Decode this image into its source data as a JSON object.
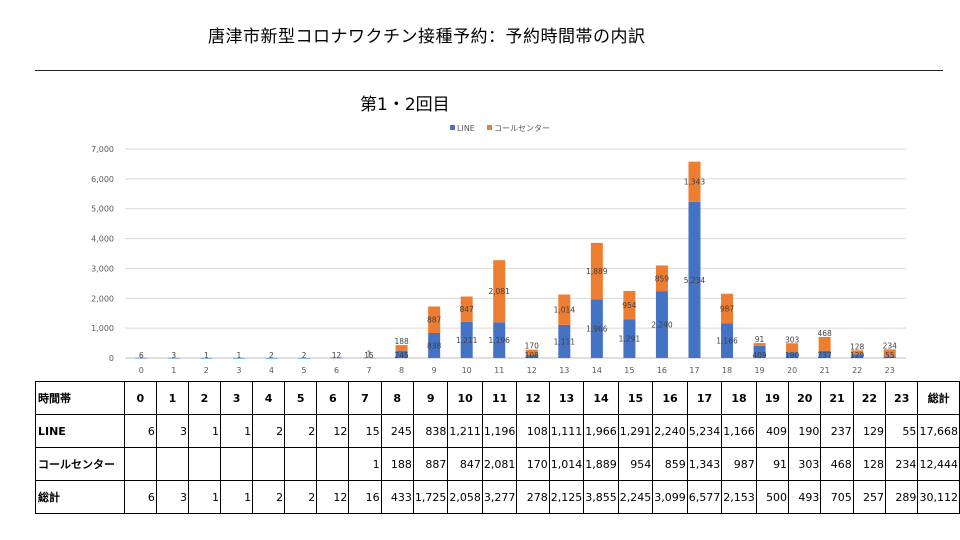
{
  "page": {
    "title": "唐津市新型コロナワクチン接種予約：予約時間帯の内訳"
  },
  "colors": {
    "line": "#4472C4",
    "call": "#ED7D31",
    "grid": "#D9D9D9",
    "axis_text": "#595959"
  },
  "chart_data": {
    "type": "bar",
    "stacked": true,
    "title": "第1・2回目",
    "categories": [
      "0",
      "1",
      "2",
      "3",
      "4",
      "5",
      "6",
      "7",
      "8",
      "9",
      "10",
      "11",
      "12",
      "13",
      "14",
      "15",
      "16",
      "17",
      "18",
      "19",
      "20",
      "21",
      "22",
      "23"
    ],
    "series": [
      {
        "name": "LINE",
        "values": [
          6,
          3,
          1,
          1,
          2,
          2,
          12,
          15,
          245,
          838,
          1211,
          1196,
          108,
          1111,
          1966,
          1291,
          2240,
          5234,
          1166,
          409,
          190,
          237,
          129,
          55
        ],
        "labels": [
          "6",
          "3",
          "1",
          "1",
          "2",
          "2",
          "12",
          "15",
          "245",
          "838",
          "1,211",
          "1,196",
          "108",
          "1,111",
          "1,966",
          "1,291",
          "2,240",
          "5,234",
          "1,166",
          "409",
          "190",
          "237",
          "129",
          "55"
        ]
      },
      {
        "name": "コールセンター",
        "values": [
          null,
          null,
          null,
          null,
          null,
          null,
          null,
          1,
          188,
          887,
          847,
          2081,
          170,
          1014,
          1889,
          954,
          859,
          1343,
          987,
          91,
          303,
          468,
          128,
          234
        ],
        "labels": [
          "",
          "",
          "",
          "",
          "",
          "",
          "",
          "1",
          "188",
          "887",
          "847",
          "2,081",
          "170",
          "1,014",
          "1,889",
          "954",
          "859",
          "1,343",
          "987",
          "91",
          "303",
          "468",
          "128",
          "234"
        ]
      }
    ],
    "ylim": [
      0,
      7000
    ],
    "yticks": [
      "0",
      "1,000",
      "2,000",
      "3,000",
      "4,000",
      "5,000",
      "6,000",
      "7,000"
    ],
    "legend_position": "top-center",
    "grid": true
  },
  "table": {
    "header_label": "時間帯",
    "total_col_label": "総計",
    "hours": [
      "0",
      "1",
      "2",
      "3",
      "4",
      "5",
      "6",
      "7",
      "8",
      "9",
      "10",
      "11",
      "12",
      "13",
      "14",
      "15",
      "16",
      "17",
      "18",
      "19",
      "20",
      "21",
      "22",
      "23"
    ],
    "rows": [
      {
        "label": "LINE",
        "cells": [
          "6",
          "3",
          "1",
          "1",
          "2",
          "2",
          "12",
          "15",
          "245",
          "838",
          "1,211",
          "1,196",
          "108",
          "1,111",
          "1,966",
          "1,291",
          "2,240",
          "5,234",
          "1,166",
          "409",
          "190",
          "237",
          "129",
          "55"
        ],
        "total": "17,668"
      },
      {
        "label": "コールセンター",
        "cells": [
          "",
          "",
          "",
          "",
          "",
          "",
          "",
          "1",
          "188",
          "887",
          "847",
          "2,081",
          "170",
          "1,014",
          "1,889",
          "954",
          "859",
          "1,343",
          "987",
          "91",
          "303",
          "468",
          "128",
          "234"
        ],
        "total": "12,444"
      },
      {
        "label": "総計",
        "cells": [
          "6",
          "3",
          "1",
          "1",
          "2",
          "2",
          "12",
          "16",
          "433",
          "1,725",
          "2,058",
          "3,277",
          "278",
          "2,125",
          "3,855",
          "2,245",
          "3,099",
          "6,577",
          "2,153",
          "500",
          "493",
          "705",
          "257",
          "289"
        ],
        "total": "30,112"
      }
    ]
  }
}
